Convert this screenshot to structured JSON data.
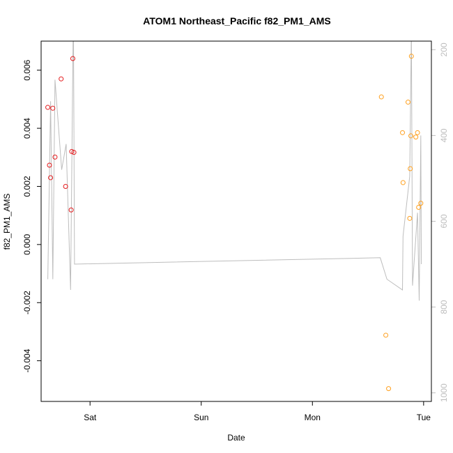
{
  "chart_data": {
    "type": "scatter",
    "title": "ATOM1 Northeast_Pacific f82_PM1_AMS",
    "xlabel": "Date",
    "ylabel": "f82_PM1_AMS",
    "x_ticks": [
      "Sat",
      "Sun",
      "Mon",
      "Tue"
    ],
    "x_tick_pos": [
      1.0,
      2.0,
      3.0,
      4.0
    ],
    "xlim": [
      0.56,
      4.07
    ],
    "ylim": [
      -0.0054,
      0.007
    ],
    "y_ticks": [
      -0.004,
      -0.002,
      0.0,
      0.002,
      0.004,
      0.006
    ],
    "y_tick_labels": [
      "-0.004",
      "-0.002",
      "0.000",
      "0.002",
      "0.004",
      "0.006"
    ],
    "y2_lim": [
      1020,
      180
    ],
    "y2_ticks": [
      200,
      400,
      600,
      800,
      1000
    ],
    "y2_tick_labels": [
      "200",
      "400",
      "600",
      "800",
      "1000"
    ],
    "series": [
      {
        "color": "#e41a1c",
        "points": [
          {
            "x": 0.62,
            "y": 0.00472
          },
          {
            "x": 0.635,
            "y": 0.00273
          },
          {
            "x": 0.645,
            "y": 0.0023
          },
          {
            "x": 0.665,
            "y": 0.00469
          },
          {
            "x": 0.685,
            "y": 0.00301
          },
          {
            "x": 0.74,
            "y": 0.0057
          },
          {
            "x": 0.78,
            "y": 0.002
          },
          {
            "x": 0.83,
            "y": 0.00119
          },
          {
            "x": 0.835,
            "y": 0.0032
          },
          {
            "x": 0.845,
            "y": 0.0064
          },
          {
            "x": 0.855,
            "y": 0.00317
          }
        ]
      },
      {
        "color": "#ff9f1c",
        "points": [
          {
            "x": 3.62,
            "y": 0.00508
          },
          {
            "x": 3.66,
            "y": -0.00312
          },
          {
            "x": 3.685,
            "y": -0.00496
          },
          {
            "x": 3.81,
            "y": 0.00385
          },
          {
            "x": 3.815,
            "y": 0.00213
          },
          {
            "x": 3.86,
            "y": 0.0049
          },
          {
            "x": 3.875,
            "y": 0.0009
          },
          {
            "x": 3.88,
            "y": 0.00261
          },
          {
            "x": 3.885,
            "y": 0.00374
          },
          {
            "x": 3.89,
            "y": 0.00648
          },
          {
            "x": 3.93,
            "y": 0.0037
          },
          {
            "x": 3.945,
            "y": 0.00385
          },
          {
            "x": 3.955,
            "y": 0.00128
          },
          {
            "x": 3.975,
            "y": 0.00142
          }
        ]
      }
    ],
    "altitude_line": {
      "color": "#bdbdbd",
      "points": [
        {
          "x": 0.62,
          "y2": 735
        },
        {
          "x": 0.645,
          "y2": 320
        },
        {
          "x": 0.665,
          "y2": 735
        },
        {
          "x": 0.685,
          "y2": 270
        },
        {
          "x": 0.745,
          "y2": 480
        },
        {
          "x": 0.785,
          "y2": 420
        },
        {
          "x": 0.825,
          "y2": 760
        },
        {
          "x": 0.85,
          "y2": 100
        },
        {
          "x": 0.86,
          "y2": 700
        },
        {
          "x": 3.61,
          "y2": 685
        },
        {
          "x": 3.67,
          "y2": 735
        },
        {
          "x": 3.81,
          "y2": 760
        },
        {
          "x": 3.815,
          "y2": 635
        },
        {
          "x": 3.875,
          "y2": 495
        },
        {
          "x": 3.89,
          "y2": 150
        },
        {
          "x": 3.9,
          "y2": 750
        },
        {
          "x": 3.945,
          "y2": 580
        },
        {
          "x": 3.96,
          "y2": 785
        },
        {
          "x": 3.975,
          "y2": 400
        },
        {
          "x": 3.98,
          "y2": 700
        }
      ]
    }
  }
}
